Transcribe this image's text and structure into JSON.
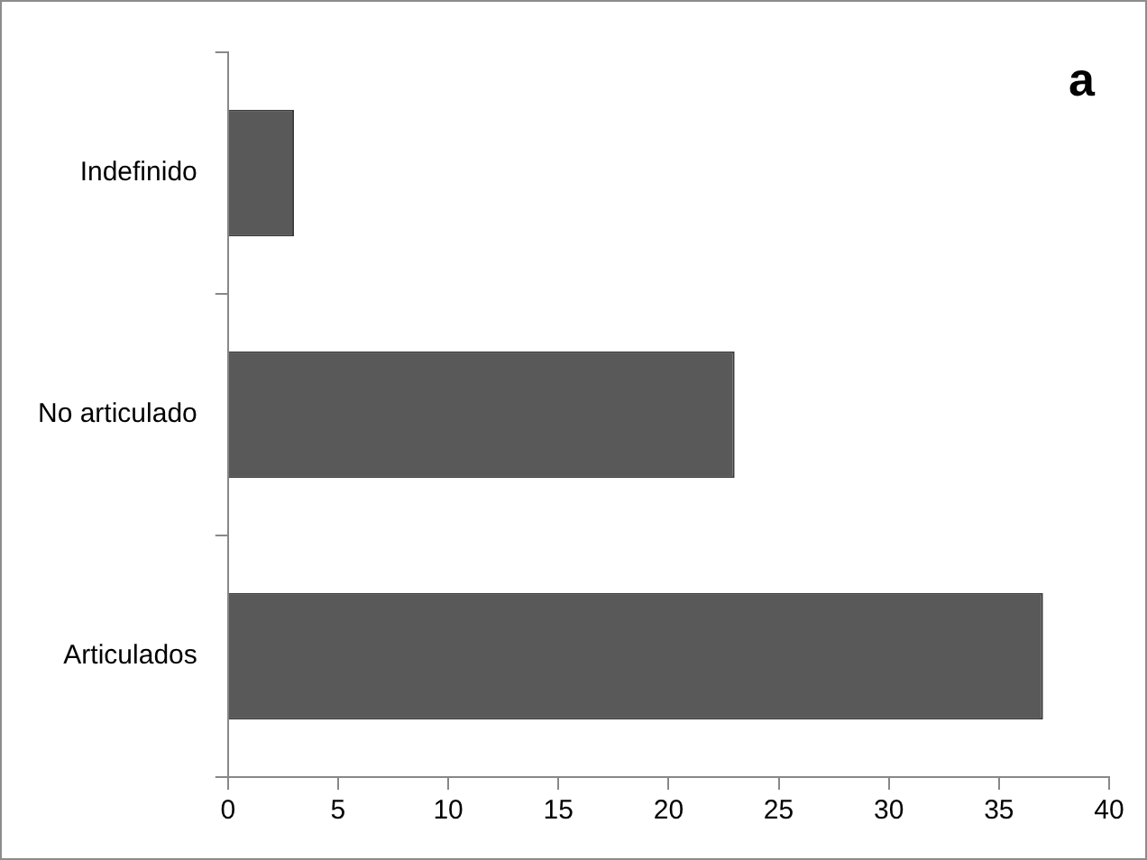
{
  "chart_data": {
    "type": "bar",
    "orientation": "horizontal",
    "categories": [
      "Indefinido",
      "No articulado",
      "Articulados"
    ],
    "values": [
      3,
      23,
      37
    ],
    "color": "#595959",
    "xlim": [
      0,
      40
    ],
    "xticks": [
      0,
      5,
      10,
      15,
      20,
      25,
      30,
      35,
      40
    ],
    "grid": false,
    "legend": false,
    "annotations": [
      "a"
    ]
  }
}
